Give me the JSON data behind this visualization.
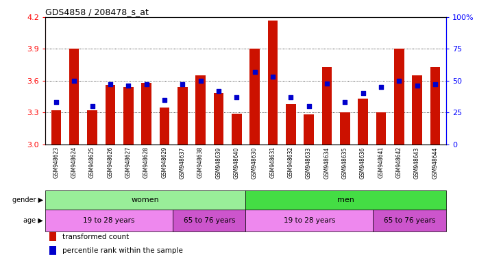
{
  "title": "GDS4858 / 208478_s_at",
  "samples": [
    "GSM948623",
    "GSM948624",
    "GSM948625",
    "GSM948626",
    "GSM948627",
    "GSM948628",
    "GSM948629",
    "GSM948637",
    "GSM948638",
    "GSM948639",
    "GSM948640",
    "GSM948630",
    "GSM948631",
    "GSM948632",
    "GSM948633",
    "GSM948634",
    "GSM948635",
    "GSM948636",
    "GSM948641",
    "GSM948642",
    "GSM948643",
    "GSM948644"
  ],
  "red_values": [
    3.32,
    3.9,
    3.32,
    3.56,
    3.54,
    3.58,
    3.35,
    3.54,
    3.65,
    3.48,
    3.29,
    3.9,
    4.17,
    3.38,
    3.28,
    3.73,
    3.3,
    3.43,
    3.3,
    3.9,
    3.65,
    3.73
  ],
  "blue_values_pct": [
    33,
    50,
    30,
    47,
    46,
    47,
    35,
    47,
    50,
    42,
    37,
    57,
    53,
    37,
    30,
    48,
    33,
    40,
    45,
    50,
    46,
    47
  ],
  "ylim": [
    3.0,
    4.2
  ],
  "y2lim": [
    0,
    100
  ],
  "yticks": [
    3.0,
    3.3,
    3.6,
    3.9,
    4.2
  ],
  "y2ticks": [
    0,
    25,
    50,
    75,
    100
  ],
  "bar_color": "#cc1100",
  "dot_color": "#0000cc",
  "gender_groups": [
    {
      "label": "women",
      "start": 0,
      "end": 11,
      "color": "#99ee99"
    },
    {
      "label": "men",
      "start": 11,
      "end": 22,
      "color": "#44dd44"
    }
  ],
  "age_groups": [
    {
      "label": "19 to 28 years",
      "start": 0,
      "end": 7,
      "color": "#ee88ee"
    },
    {
      "label": "65 to 76 years",
      "start": 7,
      "end": 11,
      "color": "#cc55cc"
    },
    {
      "label": "19 to 28 years",
      "start": 11,
      "end": 18,
      "color": "#ee88ee"
    },
    {
      "label": "65 to 76 years",
      "start": 18,
      "end": 22,
      "color": "#cc55cc"
    }
  ],
  "legend_items": [
    {
      "label": "transformed count",
      "color": "#cc1100"
    },
    {
      "label": "percentile rank within the sample",
      "color": "#0000cc"
    }
  ]
}
